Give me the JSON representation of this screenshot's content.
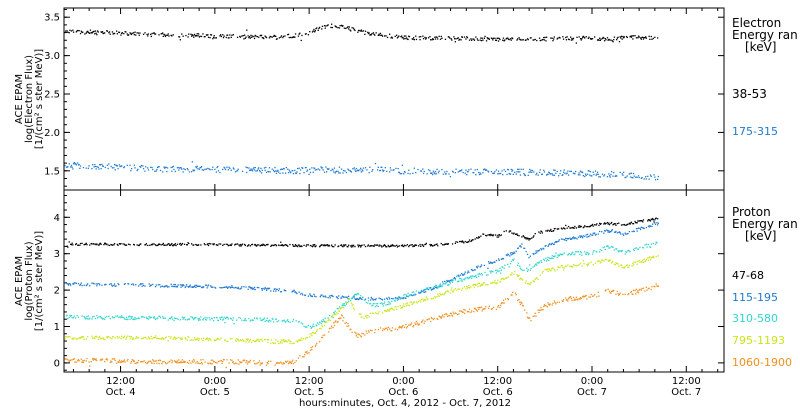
{
  "chart_data": {
    "type": "scatter",
    "xlabel": "hours:minutes, Oct. 4, 2012 - Oct. 7, 2012",
    "x_ticks": [
      {
        "hours": 12,
        "line1": "12:00",
        "line2": "Oct. 4"
      },
      {
        "hours": 24,
        "line1": "0:00",
        "line2": "Oct. 5"
      },
      {
        "hours": 36,
        "line1": "12:00",
        "line2": "Oct. 5"
      },
      {
        "hours": 48,
        "line1": "0:00",
        "line2": "Oct. 6"
      },
      {
        "hours": 60,
        "line1": "12:00",
        "line2": "Oct. 6"
      },
      {
        "hours": 72,
        "line1": "0:00",
        "line2": "Oct. 7"
      },
      {
        "hours": 84,
        "line1": "12:00",
        "line2": "Oct. 7"
      }
    ],
    "xlim_hours": [
      4.8,
      88.8
    ],
    "data_end_hours": 80.4,
    "panels": [
      {
        "id": "electron",
        "ylabel_lines": [
          "ACE EPAM",
          "log(Electron Flux)",
          "[1/(cm² s ster MeV)]"
        ],
        "ylim": [
          1.25,
          3.62
        ],
        "y_ticks": [
          1.5,
          2.0,
          2.5,
          3.0,
          3.5
        ],
        "y_tick_labels": [
          "1.5",
          "2.0",
          "2.5",
          "3.0",
          "3.5"
        ],
        "legend_title": [
          "Electron",
          "Energy ran",
          "[keV]"
        ],
        "series": [
          {
            "name": "38-53",
            "color": "#000000",
            "points": [
              [
                4.8,
                3.32
              ],
              [
                10,
                3.31
              ],
              [
                16,
                3.28
              ],
              [
                22,
                3.27
              ],
              [
                28,
                3.25
              ],
              [
                32,
                3.25
              ],
              [
                34,
                3.27
              ],
              [
                36,
                3.3
              ],
              [
                37,
                3.35
              ],
              [
                38,
                3.38
              ],
              [
                39,
                3.4
              ],
              [
                40,
                3.39
              ],
              [
                41,
                3.36
              ],
              [
                42,
                3.33
              ],
              [
                44,
                3.29
              ],
              [
                48,
                3.24
              ],
              [
                52,
                3.24
              ],
              [
                56,
                3.23
              ],
              [
                60,
                3.22
              ],
              [
                64,
                3.22
              ],
              [
                68,
                3.23
              ],
              [
                72,
                3.24
              ],
              [
                74,
                3.22
              ],
              [
                76,
                3.24
              ],
              [
                78,
                3.25
              ],
              [
                80.4,
                3.22
              ]
            ],
            "noise": 0.025
          },
          {
            "name": "175-315",
            "color": "#1f7ad3",
            "points": [
              [
                4.8,
                1.59
              ],
              [
                10,
                1.56
              ],
              [
                16,
                1.53
              ],
              [
                22,
                1.53
              ],
              [
                28,
                1.52
              ],
              [
                34,
                1.51
              ],
              [
                38,
                1.52
              ],
              [
                44,
                1.52
              ],
              [
                50,
                1.5
              ],
              [
                56,
                1.49
              ],
              [
                62,
                1.49
              ],
              [
                68,
                1.48
              ],
              [
                72,
                1.47
              ],
              [
                76,
                1.46
              ],
              [
                80.4,
                1.42
              ]
            ],
            "noise": 0.04
          }
        ]
      },
      {
        "id": "proton",
        "ylabel_lines": [
          "ACE EPAM",
          "log(Proton Flux)",
          "[1/(cm² s ster MeV)]"
        ],
        "ylim": [
          -0.25,
          4.75
        ],
        "y_ticks": [
          0,
          1,
          2,
          3,
          4
        ],
        "y_tick_labels": [
          "0",
          "1",
          "2",
          "3",
          "4"
        ],
        "legend_title": [
          "Proton",
          "Energy ran",
          "[keV]"
        ],
        "series": [
          {
            "name": "47-68",
            "color": "#000000",
            "points": [
              [
                4.8,
                3.28
              ],
              [
                16,
                3.27
              ],
              [
                24,
                3.27
              ],
              [
                30,
                3.25
              ],
              [
                36,
                3.24
              ],
              [
                44,
                3.23
              ],
              [
                50,
                3.24
              ],
              [
                54,
                3.28
              ],
              [
                57,
                3.4
              ],
              [
                58,
                3.55
              ],
              [
                60,
                3.5
              ],
              [
                61,
                3.65
              ],
              [
                62,
                3.58
              ],
              [
                63,
                3.5
              ],
              [
                64,
                3.4
              ],
              [
                65,
                3.6
              ],
              [
                66,
                3.62
              ],
              [
                68,
                3.72
              ],
              [
                70,
                3.75
              ],
              [
                72,
                3.8
              ],
              [
                74,
                3.85
              ],
              [
                76,
                3.82
              ],
              [
                78,
                3.9
              ],
              [
                80.4,
                3.98
              ]
            ],
            "noise": 0.03
          },
          {
            "name": "115-195",
            "color": "#1f7ad3",
            "points": [
              [
                4.8,
                2.18
              ],
              [
                16,
                2.15
              ],
              [
                22,
                2.12
              ],
              [
                26,
                2.1
              ],
              [
                30,
                2.05
              ],
              [
                34,
                1.98
              ],
              [
                36,
                1.88
              ],
              [
                40,
                1.82
              ],
              [
                44,
                1.78
              ],
              [
                48,
                1.8
              ],
              [
                50,
                1.95
              ],
              [
                52,
                2.1
              ],
              [
                54,
                2.3
              ],
              [
                56,
                2.5
              ],
              [
                58,
                2.7
              ],
              [
                60,
                2.85
              ],
              [
                62,
                3.05
              ],
              [
                63,
                3.25
              ],
              [
                64,
                2.9
              ],
              [
                65,
                3.1
              ],
              [
                66,
                3.2
              ],
              [
                68,
                3.4
              ],
              [
                70,
                3.45
              ],
              [
                72,
                3.55
              ],
              [
                74,
                3.65
              ],
              [
                76,
                3.55
              ],
              [
                78,
                3.7
              ],
              [
                80.4,
                3.85
              ]
            ],
            "noise": 0.04
          },
          {
            "name": "310-580",
            "color": "#2fd6cf",
            "points": [
              [
                4.8,
                1.28
              ],
              [
                16,
                1.25
              ],
              [
                26,
                1.22
              ],
              [
                34,
                1.18
              ],
              [
                36,
                1.0
              ],
              [
                38,
                1.2
              ],
              [
                40,
                1.55
              ],
              [
                42,
                1.9
              ],
              [
                44,
                1.6
              ],
              [
                46,
                1.65
              ],
              [
                48,
                1.85
              ],
              [
                52,
                2.1
              ],
              [
                56,
                2.35
              ],
              [
                60,
                2.55
              ],
              [
                62,
                2.85
              ],
              [
                63,
                2.6
              ],
              [
                64,
                2.55
              ],
              [
                65,
                2.75
              ],
              [
                66,
                2.85
              ],
              [
                68,
                3.0
              ],
              [
                72,
                3.05
              ],
              [
                74,
                3.2
              ],
              [
                76,
                3.05
              ],
              [
                78,
                3.2
              ],
              [
                80.4,
                3.3
              ]
            ],
            "noise": 0.05
          },
          {
            "name": "795-1193",
            "color": "#c8e61a",
            "points": [
              [
                4.8,
                0.7
              ],
              [
                16,
                0.72
              ],
              [
                26,
                0.65
              ],
              [
                32,
                0.6
              ],
              [
                34,
                0.6
              ],
              [
                36,
                0.75
              ],
              [
                38,
                1.1
              ],
              [
                40,
                1.5
              ],
              [
                41,
                1.75
              ],
              [
                42,
                1.4
              ],
              [
                43,
                1.25
              ],
              [
                44,
                1.4
              ],
              [
                46,
                1.45
              ],
              [
                48,
                1.6
              ],
              [
                52,
                1.85
              ],
              [
                56,
                2.1
              ],
              [
                60,
                2.25
              ],
              [
                62,
                2.5
              ],
              [
                63,
                2.3
              ],
              [
                64,
                2.2
              ],
              [
                65,
                2.35
              ],
              [
                66,
                2.55
              ],
              [
                68,
                2.65
              ],
              [
                72,
                2.75
              ],
              [
                74,
                2.85
              ],
              [
                76,
                2.65
              ],
              [
                78,
                2.8
              ],
              [
                80.4,
                2.95
              ]
            ],
            "noise": 0.05
          },
          {
            "name": "1060-1900",
            "color": "#f0901e",
            "points": [
              [
                4.8,
                0.1
              ],
              [
                16,
                0.05
              ],
              [
                26,
                0.05
              ],
              [
                32,
                0.0
              ],
              [
                34,
                0.05
              ],
              [
                36,
                0.35
              ],
              [
                38,
                0.8
              ],
              [
                40,
                1.3
              ],
              [
                41,
                1.0
              ],
              [
                42,
                0.75
              ],
              [
                44,
                0.9
              ],
              [
                46,
                0.95
              ],
              [
                48,
                1.0
              ],
              [
                52,
                1.25
              ],
              [
                56,
                1.45
              ],
              [
                60,
                1.55
              ],
              [
                62,
                1.95
              ],
              [
                63,
                1.6
              ],
              [
                64,
                1.2
              ],
              [
                65,
                1.4
              ],
              [
                66,
                1.6
              ],
              [
                68,
                1.75
              ],
              [
                72,
                1.85
              ],
              [
                74,
                2.0
              ],
              [
                76,
                1.9
              ],
              [
                78,
                2.0
              ],
              [
                80.4,
                2.15
              ]
            ],
            "noise": 0.06
          }
        ]
      }
    ]
  }
}
